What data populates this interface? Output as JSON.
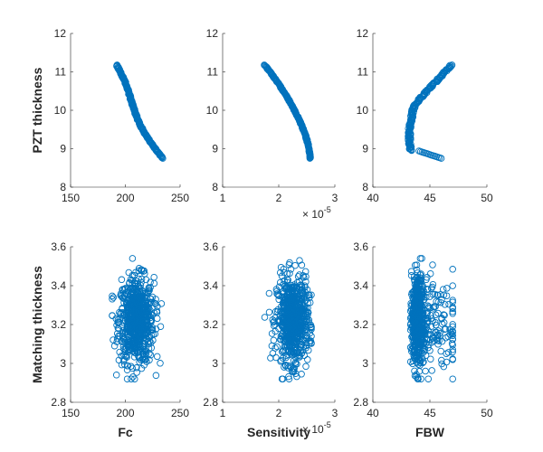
{
  "chart_data": [
    {
      "type": "scatter",
      "title": "",
      "xlabel": "",
      "ylabel": "PZT thickness",
      "xlim": [
        150,
        250
      ],
      "ylim": [
        8,
        12
      ],
      "xticks": [
        "150",
        "200",
        "250"
      ],
      "yticks": [
        "8",
        "9",
        "10",
        "11",
        "12"
      ],
      "x_exponent": "",
      "series": [
        {
          "x_range": [
            188,
            234
          ],
          "y_range": [
            8.75,
            11.18
          ],
          "relation": "decreasing curve"
        }
      ]
    },
    {
      "type": "scatter",
      "title": "",
      "xlabel": "",
      "ylabel": "",
      "xlim": [
        1,
        3
      ],
      "ylim": [
        8,
        12
      ],
      "xticks": [
        "1",
        "2",
        "3"
      ],
      "yticks": [
        "8",
        "9",
        "10",
        "11",
        "12"
      ],
      "x_exponent": "-5",
      "series": [
        {
          "x_range": [
            1.75,
            2.56
          ],
          "y_range": [
            8.75,
            11.18
          ],
          "relation": "decreasing concave curve"
        }
      ]
    },
    {
      "type": "scatter",
      "title": "",
      "xlabel": "",
      "ylabel": "",
      "xlim": [
        40,
        50
      ],
      "ylim": [
        8,
        12
      ],
      "xticks": [
        "40",
        "45",
        "50"
      ],
      "yticks": [
        "8",
        "9",
        "10",
        "11",
        "12"
      ],
      "x_exponent": "",
      "series": [
        {
          "x_range": [
            43.3,
            46.9
          ],
          "y_range": [
            8.75,
            11.18
          ],
          "relation": "S-shaped curve"
        }
      ]
    },
    {
      "type": "scatter",
      "title": "",
      "xlabel": "Fc",
      "ylabel": "Matching thickness",
      "xlim": [
        150,
        250
      ],
      "ylim": [
        2.8,
        3.6
      ],
      "xticks": [
        "150",
        "200",
        "250"
      ],
      "yticks": [
        "2.8",
        "3",
        "3.2",
        "3.4",
        "3.6"
      ],
      "x_exponent": "",
      "series": [
        {
          "x_range": [
            188,
            233
          ],
          "y_range": [
            2.92,
            3.54
          ],
          "relation": "elliptical cloud"
        }
      ]
    },
    {
      "type": "scatter",
      "title": "",
      "xlabel": "Sensitivity",
      "ylabel": "",
      "xlim": [
        1,
        3
      ],
      "ylim": [
        2.8,
        3.6
      ],
      "xticks": [
        "1",
        "2",
        "3"
      ],
      "yticks": [
        "2.8",
        "3",
        "3.2",
        "3.4",
        "3.6"
      ],
      "x_exponent": "-5",
      "series": [
        {
          "x_range": [
            1.75,
            2.58
          ],
          "y_range": [
            2.92,
            3.53
          ],
          "relation": "elliptical cloud"
        }
      ]
    },
    {
      "type": "scatter",
      "title": "",
      "xlabel": "FBW",
      "ylabel": "",
      "xlim": [
        40,
        50
      ],
      "ylim": [
        2.8,
        3.6
      ],
      "xticks": [
        "40",
        "45",
        "50"
      ],
      "yticks": [
        "2.8",
        "3",
        "3.2",
        "3.4",
        "3.6"
      ],
      "x_exponent": "",
      "series": [
        {
          "x_range": [
            43.3,
            47.0
          ],
          "y_range": [
            2.92,
            3.54
          ],
          "relation": "vertical band at 43.8 with tail to right"
        }
      ]
    }
  ],
  "exponent_base": "× 10",
  "marker_color": "#0072BD"
}
